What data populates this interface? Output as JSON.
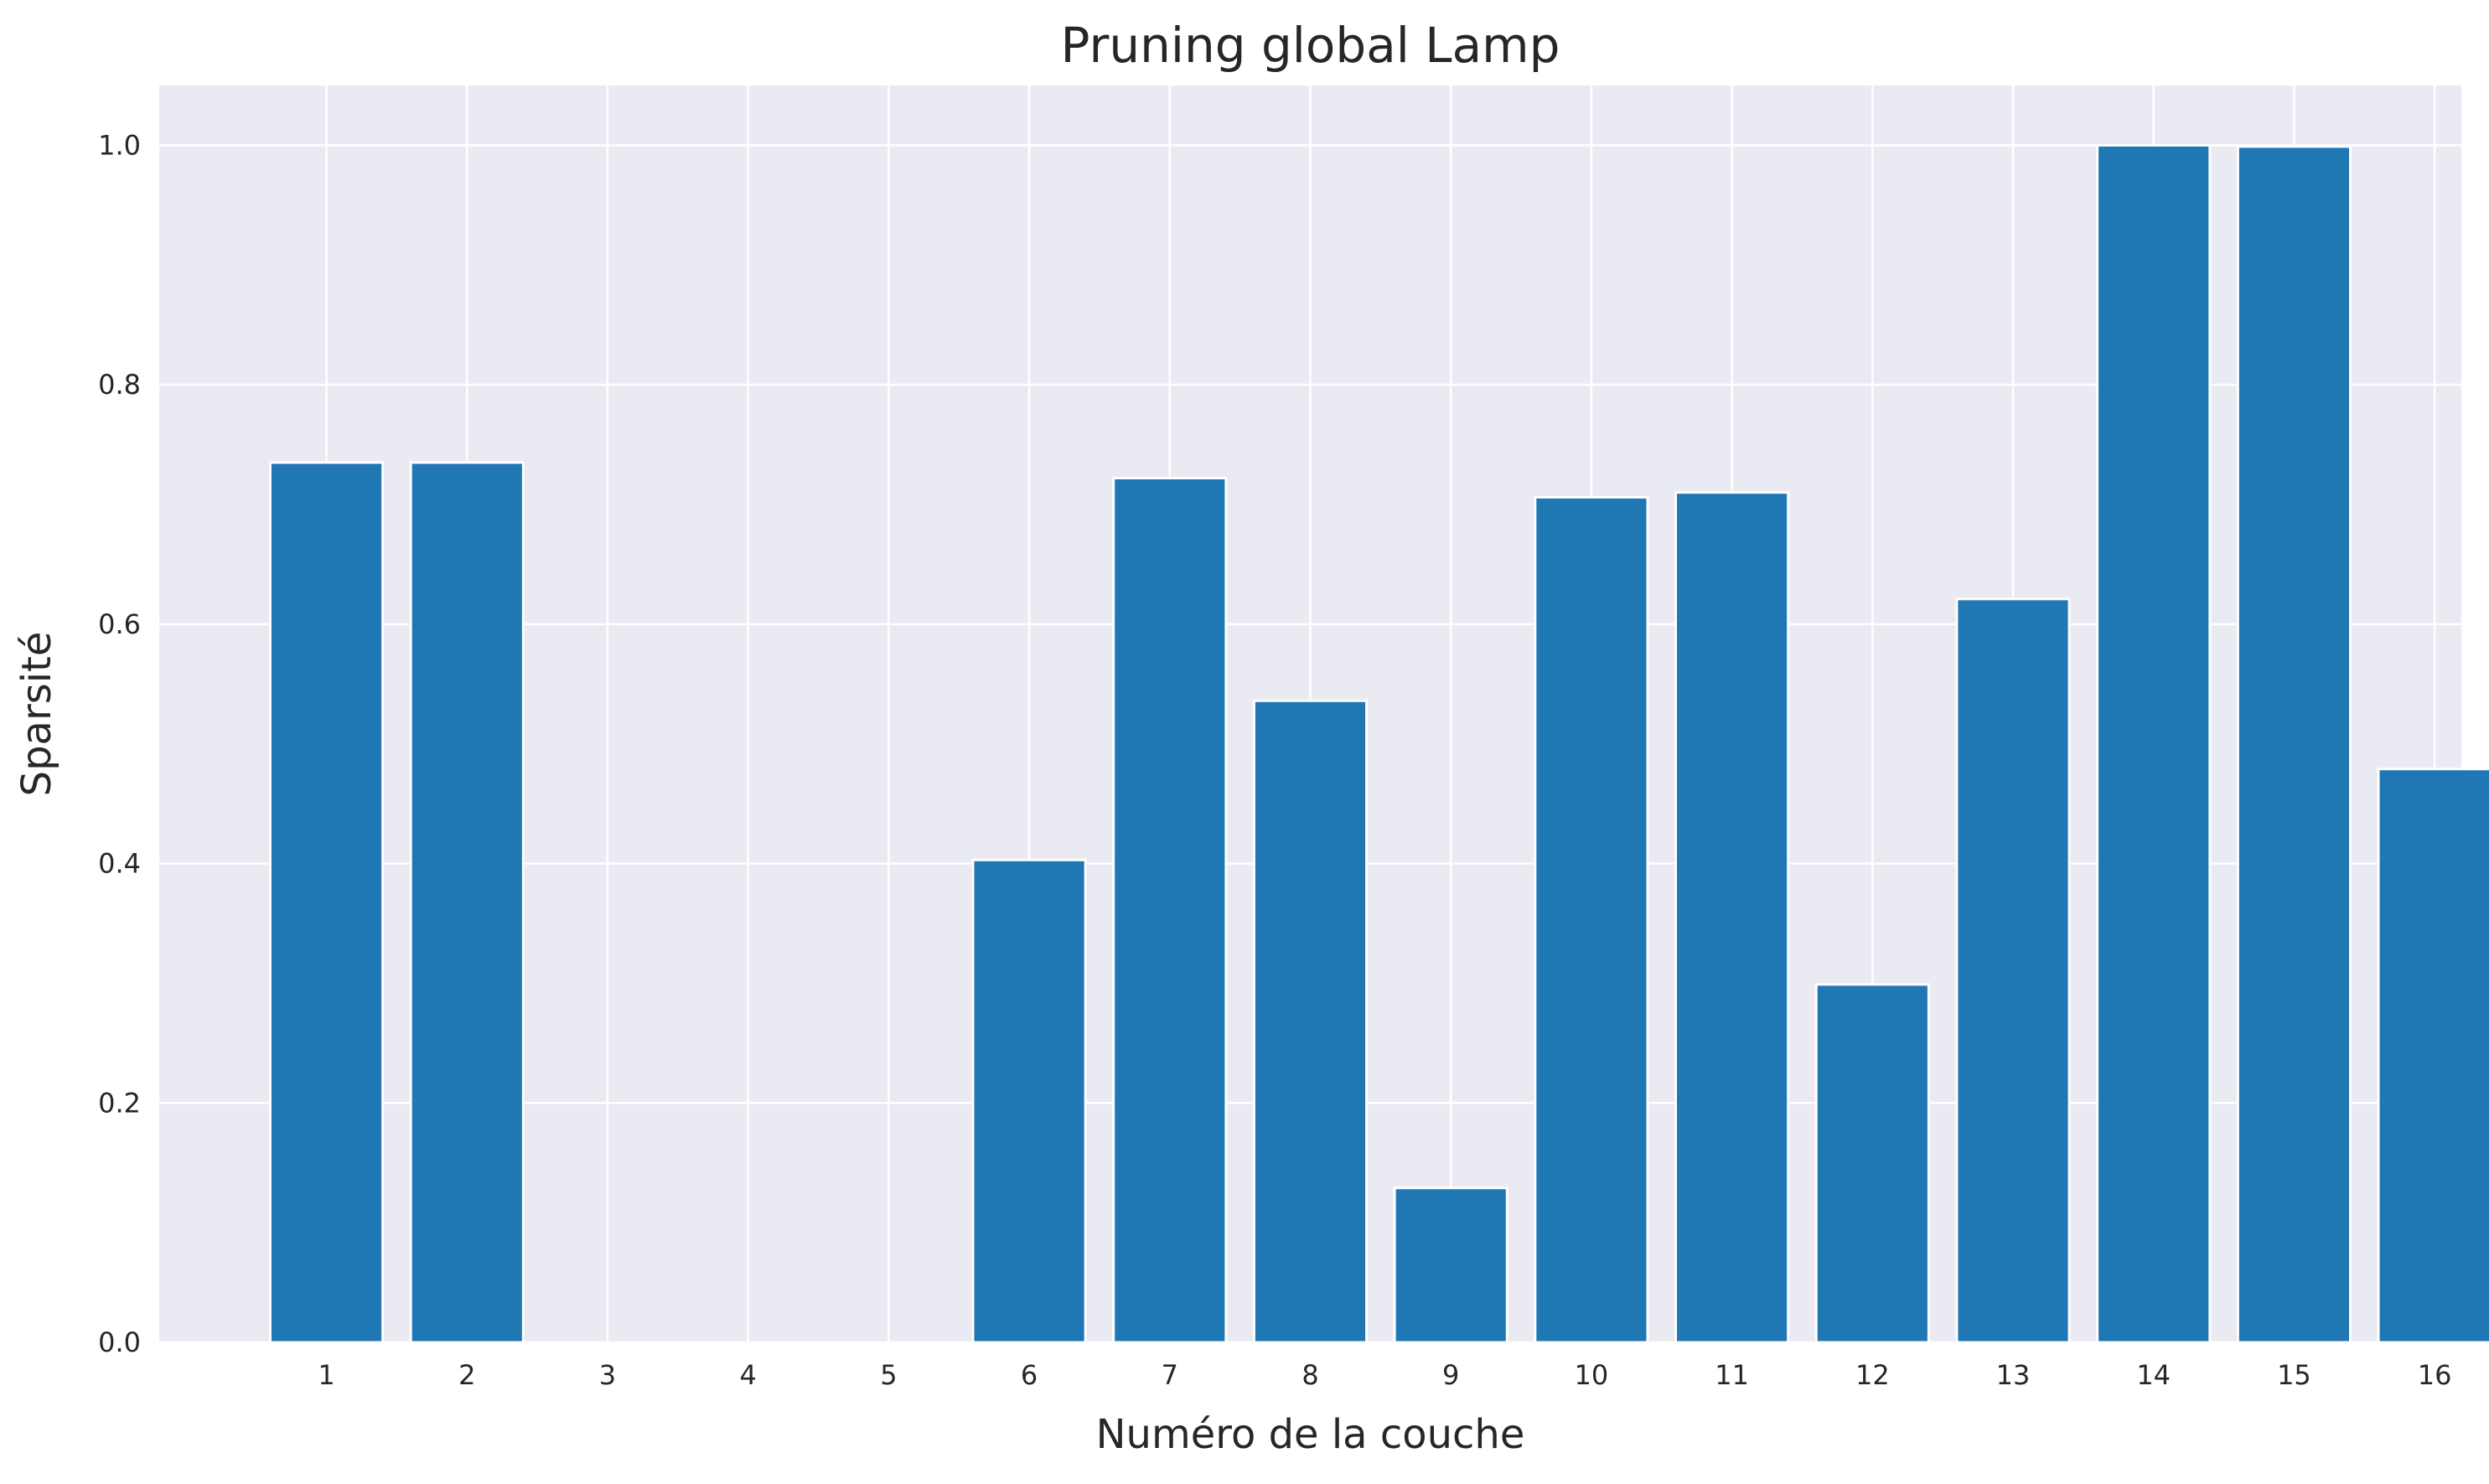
{
  "chart_data": {
    "type": "bar",
    "title": "Pruning global Lamp",
    "xlabel": "Numéro de la couche",
    "ylabel": "Sparsité",
    "categories": [
      "1",
      "2",
      "3",
      "4",
      "5",
      "6",
      "7",
      "8",
      "9",
      "10",
      "11",
      "12",
      "13",
      "14",
      "15",
      "16"
    ],
    "values": [
      0.735,
      0.735,
      0.0,
      0.0,
      0.0,
      0.403,
      0.722,
      0.536,
      0.129,
      0.706,
      0.71,
      0.299,
      0.621,
      1.0,
      0.999,
      0.479
    ],
    "xlim": [
      -0.19,
      16.19
    ],
    "ylim": [
      0,
      1.05
    ],
    "yticks": [
      "0.0",
      "0.2",
      "0.4",
      "0.6",
      "0.8",
      "1.0"
    ],
    "ytick_values": [
      0,
      0.2,
      0.4,
      0.6,
      0.8,
      1.0
    ],
    "grid": true,
    "bar_color": "#1f77b4",
    "background_color": "#eaeaf2",
    "grid_color": "#ffffff"
  }
}
